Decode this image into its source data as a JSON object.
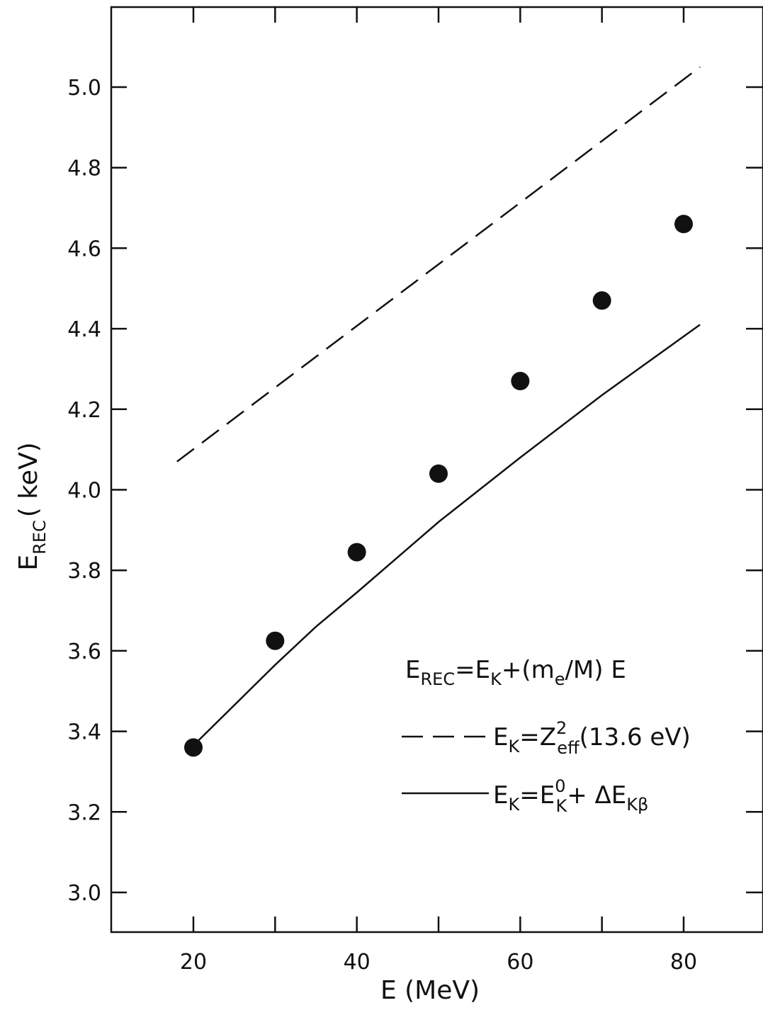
{
  "chart_data": {
    "type": "scatter",
    "xlabel": "E (MeV)",
    "ylabel": {
      "main": "E",
      "sub": "REC",
      "rest": "( keV)"
    },
    "xlim": [
      10,
      90
    ],
    "ylim": [
      2.9,
      5.2
    ],
    "xticks": [
      20,
      40,
      60,
      80
    ],
    "xtick_labels": [
      "20",
      "40",
      "60",
      "80"
    ],
    "xminor": [
      30,
      50,
      70
    ],
    "yticks": [
      3.0,
      3.2,
      3.4,
      3.6,
      3.8,
      4.0,
      4.2,
      4.4,
      4.6,
      4.8,
      5.0
    ],
    "ytick_labels": [
      "3.0",
      "3.2",
      "3.4",
      "3.6",
      "3.8",
      "4.0",
      "4.2",
      "4.4",
      "4.6",
      "4.8",
      "5.0"
    ],
    "grid": false,
    "series": [
      {
        "style": "points",
        "x": [
          20,
          30,
          40,
          50,
          60,
          70,
          80
        ],
        "y": [
          3.36,
          3.625,
          3.845,
          4.04,
          4.27,
          4.47,
          4.66
        ]
      },
      {
        "style": "dashed",
        "x": [
          18,
          82
        ],
        "y": [
          4.07,
          5.05
        ]
      },
      {
        "style": "solid",
        "x": [
          20,
          25,
          30,
          35,
          40,
          50,
          60,
          70,
          82
        ],
        "y": [
          3.365,
          3.465,
          3.565,
          3.66,
          3.745,
          3.92,
          4.08,
          4.235,
          4.41
        ]
      }
    ],
    "legend": {
      "placement": "bottom-right",
      "formula": {
        "lhs": "E",
        "lhs_sub": "REC",
        "rhs": "=E",
        "rhs_sub": "K",
        "rhs2": "+(m",
        "rhs2_sub": "e",
        "rhs3": "/M) E"
      },
      "dashed_label": {
        "a": "E",
        "a_sub": "K",
        "b": "=Z",
        "b_sup": "2",
        "b_sub": "eff",
        "c": "(13.6 eV)"
      },
      "solid_label": {
        "a": "E",
        "a_sub": "K",
        "b": "=E",
        "b_sup": "0",
        "b_sub": "K",
        "c": "+ ΔE",
        "c_sub": "Kβ"
      }
    }
  }
}
